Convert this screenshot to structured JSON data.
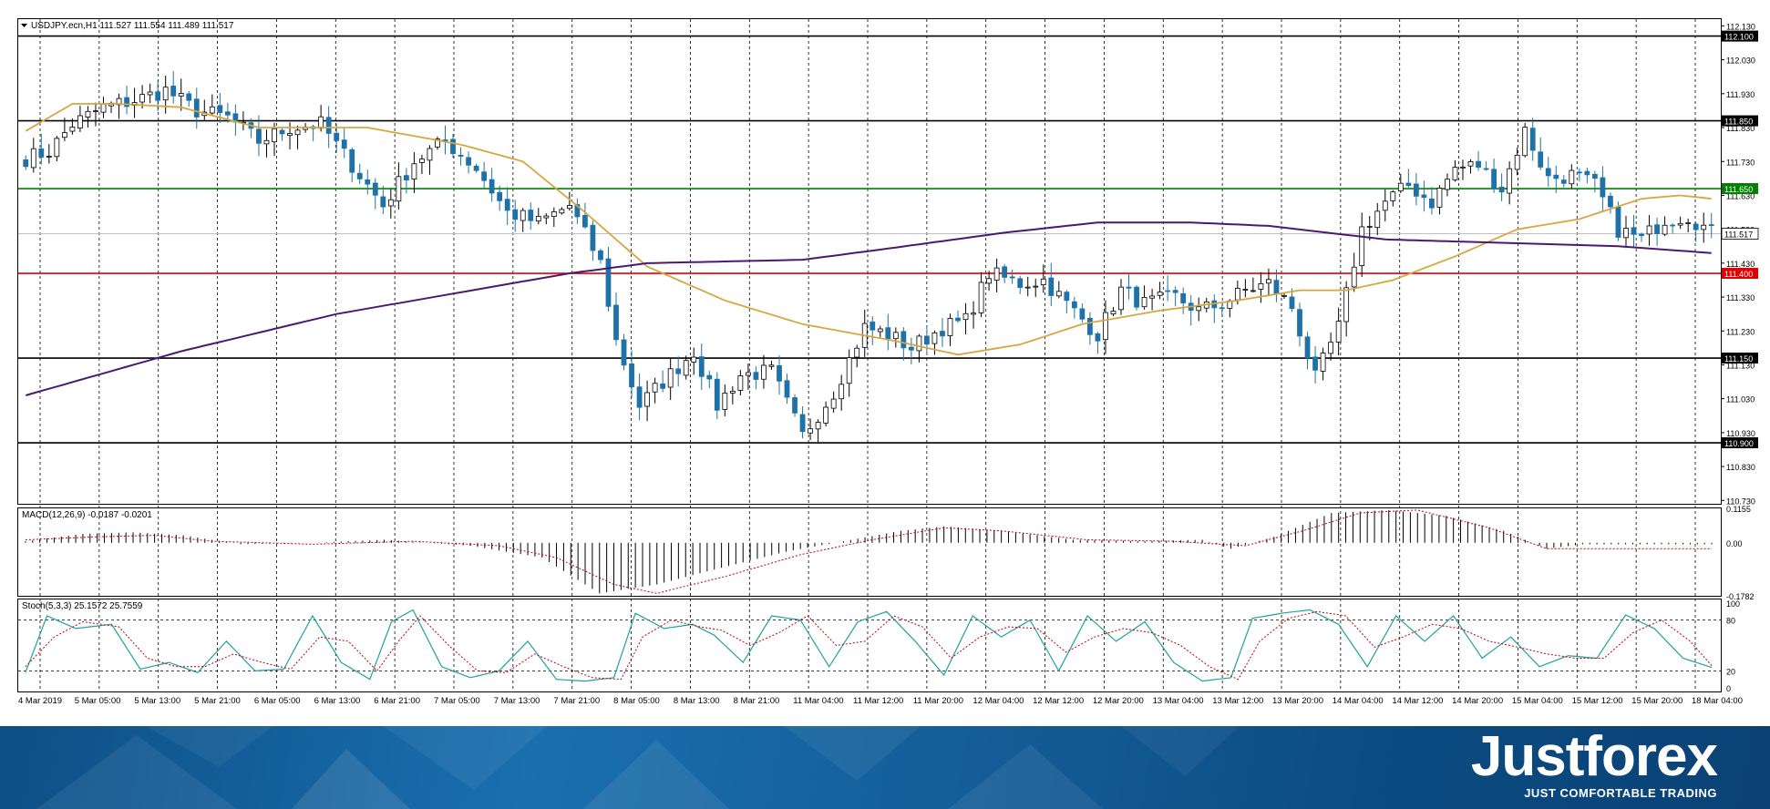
{
  "chart_data": {
    "type": "candlestick",
    "symbol_header": "USDJPY.ecn,H1  111.527 111.554 111.489 111.517",
    "price_axis": {
      "ylim": [
        110.72,
        112.15
      ],
      "ticks": [
        "112.130",
        "112.030",
        "111.930",
        "111.830",
        "111.730",
        "111.630",
        "111.530",
        "111.430",
        "111.330",
        "111.230",
        "111.130",
        "111.030",
        "110.930",
        "110.830",
        "110.730"
      ]
    },
    "horizontal_levels": [
      {
        "value": 112.1,
        "label": "112.100",
        "color": "#000000"
      },
      {
        "value": 111.85,
        "label": "111.850",
        "color": "#000000"
      },
      {
        "value": 111.65,
        "label": "111.650",
        "color": "#008000"
      },
      {
        "value": 111.4,
        "label": "111.400",
        "color": "#e00000"
      },
      {
        "value": 111.15,
        "label": "111.150",
        "color": "#000000"
      },
      {
        "value": 110.9,
        "label": "110.900",
        "color": "#000000"
      }
    ],
    "current_price": {
      "value": 111.517,
      "label": "111.517"
    },
    "x_labels": [
      "4 Mar 2019",
      "5 Mar 05:00",
      "5 Mar 13:00",
      "5 Mar 21:00",
      "6 Mar 05:00",
      "6 Mar 13:00",
      "6 Mar 21:00",
      "7 Mar 05:00",
      "7 Mar 13:00",
      "7 Mar 21:00",
      "8 Mar 05:00",
      "8 Mar 13:00",
      "8 Mar 21:00",
      "11 Mar 04:00",
      "11 Mar 12:00",
      "11 Mar 20:00",
      "12 Mar 04:00",
      "12 Mar 12:00",
      "12 Mar 20:00",
      "13 Mar 04:00",
      "13 Mar 12:00",
      "13 Mar 20:00",
      "14 Mar 04:00",
      "14 Mar 12:00",
      "14 Mar 20:00",
      "15 Mar 04:00",
      "15 Mar 12:00",
      "15 Mar 20:00",
      "18 Mar 04:00"
    ],
    "close_anchors": [
      [
        0,
        111.74
      ],
      [
        3,
        111.76
      ],
      [
        6,
        111.84
      ],
      [
        10,
        111.89
      ],
      [
        14,
        111.91
      ],
      [
        18,
        111.94
      ],
      [
        22,
        111.88
      ],
      [
        26,
        111.86
      ],
      [
        30,
        111.79
      ],
      [
        34,
        111.83
      ],
      [
        38,
        111.84
      ],
      [
        42,
        111.72
      ],
      [
        46,
        111.6
      ],
      [
        50,
        111.73
      ],
      [
        54,
        111.79
      ],
      [
        58,
        111.71
      ],
      [
        62,
        111.58
      ],
      [
        66,
        111.55
      ],
      [
        70,
        111.6
      ],
      [
        74,
        111.43
      ],
      [
        76,
        111.2
      ],
      [
        79,
        111.01
      ],
      [
        82,
        111.08
      ],
      [
        86,
        111.17
      ],
      [
        89,
        111.01
      ],
      [
        92,
        111.1
      ],
      [
        96,
        111.11
      ],
      [
        100,
        110.92
      ],
      [
        104,
        111.05
      ],
      [
        108,
        111.24
      ],
      [
        111,
        111.22
      ],
      [
        114,
        111.18
      ],
      [
        118,
        111.24
      ],
      [
        121,
        111.26
      ],
      [
        124,
        111.4
      ],
      [
        128,
        111.37
      ],
      [
        131,
        111.38
      ],
      [
        134,
        111.31
      ],
      [
        138,
        111.22
      ],
      [
        141,
        111.35
      ],
      [
        144,
        111.31
      ],
      [
        148,
        111.33
      ],
      [
        151,
        111.29
      ],
      [
        154,
        111.31
      ],
      [
        157,
        111.35
      ],
      [
        160,
        111.37
      ],
      [
        163,
        111.3
      ],
      [
        166,
        111.09
      ],
      [
        169,
        111.24
      ],
      [
        172,
        111.53
      ],
      [
        175,
        111.61
      ],
      [
        178,
        111.66
      ],
      [
        181,
        111.61
      ],
      [
        184,
        111.71
      ],
      [
        187,
        111.72
      ],
      [
        190,
        111.65
      ],
      [
        193,
        111.82
      ],
      [
        196,
        111.68
      ],
      [
        199,
        111.69
      ],
      [
        202,
        111.66
      ],
      [
        205,
        111.53
      ],
      [
        208,
        111.5
      ],
      [
        211,
        111.56
      ],
      [
        214,
        111.57
      ],
      [
        217,
        111.52
      ]
    ],
    "sma_fast_anchors": [
      [
        0,
        111.82
      ],
      [
        6,
        111.9
      ],
      [
        12,
        111.9
      ],
      [
        20,
        111.89
      ],
      [
        30,
        111.83
      ],
      [
        44,
        111.83
      ],
      [
        56,
        111.78
      ],
      [
        64,
        111.73
      ],
      [
        72,
        111.58
      ],
      [
        80,
        111.42
      ],
      [
        90,
        111.32
      ],
      [
        100,
        111.25
      ],
      [
        112,
        111.2
      ],
      [
        120,
        111.16
      ],
      [
        128,
        111.19
      ],
      [
        136,
        111.25
      ],
      [
        146,
        111.29
      ],
      [
        156,
        111.32
      ],
      [
        164,
        111.35
      ],
      [
        170,
        111.35
      ],
      [
        176,
        111.38
      ],
      [
        184,
        111.45
      ],
      [
        192,
        111.53
      ],
      [
        200,
        111.56
      ],
      [
        208,
        111.62
      ],
      [
        213,
        111.63
      ],
      [
        217,
        111.62
      ]
    ],
    "sma_slow_anchors": [
      [
        0,
        111.04
      ],
      [
        20,
        111.17
      ],
      [
        40,
        111.28
      ],
      [
        60,
        111.36
      ],
      [
        70,
        111.4
      ],
      [
        80,
        111.43
      ],
      [
        100,
        111.44
      ],
      [
        110,
        111.47
      ],
      [
        126,
        111.52
      ],
      [
        138,
        111.55
      ],
      [
        145,
        111.55
      ],
      [
        150,
        111.55
      ],
      [
        160,
        111.54
      ],
      [
        175,
        111.5
      ],
      [
        190,
        111.49
      ],
      [
        205,
        111.48
      ],
      [
        217,
        111.46
      ]
    ],
    "macd": {
      "label": "MACD(12,26,9) -0.0187 -0.0201",
      "ylim": [
        -0.1782,
        0.1155
      ],
      "ticks": [
        "0.1155",
        "0.00",
        "-0.1782"
      ],
      "hist_anchors": [
        [
          0,
          0.005
        ],
        [
          8,
          0.03
        ],
        [
          15,
          0.035
        ],
        [
          22,
          0.025
        ],
        [
          30,
          -0.005
        ],
        [
          40,
          0.0
        ],
        [
          50,
          0.01
        ],
        [
          62,
          -0.01
        ],
        [
          72,
          -0.05
        ],
        [
          80,
          -0.17
        ],
        [
          88,
          -0.14
        ],
        [
          96,
          -0.09
        ],
        [
          106,
          -0.03
        ],
        [
          114,
          0.005
        ],
        [
          122,
          0.04
        ],
        [
          128,
          0.055
        ],
        [
          136,
          0.04
        ],
        [
          146,
          0.01
        ],
        [
          156,
          0.005
        ],
        [
          164,
          0.01
        ],
        [
          168,
          -0.02
        ],
        [
          174,
          0.02
        ],
        [
          182,
          0.1
        ],
        [
          190,
          0.11
        ],
        [
          198,
          0.09
        ],
        [
          206,
          0.04
        ],
        [
          212,
          -0.02
        ],
        [
          217,
          -0.005
        ]
      ],
      "signal_anchors": [
        [
          0,
          0.01
        ],
        [
          10,
          0.02
        ],
        [
          18,
          0.025
        ],
        [
          26,
          0.005
        ],
        [
          40,
          -0.005
        ],
        [
          54,
          0.005
        ],
        [
          66,
          -0.01
        ],
        [
          74,
          -0.05
        ],
        [
          82,
          -0.14
        ],
        [
          88,
          -0.17
        ],
        [
          98,
          -0.11
        ],
        [
          108,
          -0.04
        ],
        [
          118,
          0.01
        ],
        [
          128,
          0.05
        ],
        [
          136,
          0.04
        ],
        [
          148,
          0.01
        ],
        [
          160,
          0.005
        ],
        [
          170,
          -0.01
        ],
        [
          178,
          0.04
        ],
        [
          186,
          0.1
        ],
        [
          194,
          0.11
        ],
        [
          204,
          0.05
        ],
        [
          212,
          -0.02
        ],
        [
          217,
          -0.02
        ]
      ]
    },
    "stochastic": {
      "label": "Stoch(5,3,3) 25.1572 25.7559",
      "ylim": [
        0,
        100
      ],
      "ticks": [
        "100",
        "80",
        "20",
        "0"
      ],
      "levels": [
        80,
        20
      ],
      "main_anchors": [
        [
          0,
          18
        ],
        [
          3,
          85
        ],
        [
          7,
          70
        ],
        [
          12,
          75
        ],
        [
          16,
          22
        ],
        [
          20,
          30
        ],
        [
          24,
          18
        ],
        [
          28,
          55
        ],
        [
          32,
          20
        ],
        [
          36,
          22
        ],
        [
          40,
          85
        ],
        [
          44,
          30
        ],
        [
          48,
          10
        ],
        [
          51,
          78
        ],
        [
          54,
          92
        ],
        [
          58,
          25
        ],
        [
          62,
          12
        ],
        [
          66,
          20
        ],
        [
          70,
          55
        ],
        [
          74,
          10
        ],
        [
          78,
          8
        ],
        [
          82,
          12
        ],
        [
          85,
          88
        ],
        [
          89,
          70
        ],
        [
          93,
          75
        ],
        [
          96,
          62
        ],
        [
          100,
          30
        ],
        [
          104,
          85
        ],
        [
          108,
          80
        ],
        [
          112,
          25
        ],
        [
          116,
          78
        ],
        [
          120,
          90
        ],
        [
          124,
          55
        ],
        [
          128,
          15
        ],
        [
          132,
          85
        ],
        [
          136,
          60
        ],
        [
          140,
          80
        ],
        [
          144,
          20
        ],
        [
          148,
          85
        ],
        [
          152,
          55
        ],
        [
          156,
          78
        ],
        [
          160,
          30
        ],
        [
          164,
          8
        ],
        [
          168,
          12
        ],
        [
          171,
          82
        ],
        [
          175,
          88
        ],
        [
          179,
          92
        ],
        [
          183,
          75
        ],
        [
          187,
          25
        ],
        [
          191,
          85
        ],
        [
          195,
          55
        ],
        [
          199,
          85
        ],
        [
          203,
          35
        ],
        [
          207,
          60
        ],
        [
          211,
          25
        ],
        [
          215,
          38
        ],
        [
          219,
          35
        ],
        [
          223,
          86
        ],
        [
          227,
          70
        ],
        [
          231,
          35
        ],
        [
          235,
          24
        ]
      ],
      "signal_anchors": [
        [
          0,
          25
        ],
        [
          4,
          60
        ],
        [
          8,
          78
        ],
        [
          13,
          72
        ],
        [
          17,
          35
        ],
        [
          21,
          25
        ],
        [
          25,
          25
        ],
        [
          29,
          40
        ],
        [
          33,
          30
        ],
        [
          37,
          22
        ],
        [
          41,
          60
        ],
        [
          45,
          55
        ],
        [
          49,
          20
        ],
        [
          52,
          55
        ],
        [
          55,
          85
        ],
        [
          59,
          50
        ],
        [
          63,
          20
        ],
        [
          67,
          18
        ],
        [
          71,
          40
        ],
        [
          75,
          25
        ],
        [
          79,
          12
        ],
        [
          83,
          10
        ],
        [
          86,
          60
        ],
        [
          90,
          80
        ],
        [
          94,
          72
        ],
        [
          97,
          68
        ],
        [
          101,
          50
        ],
        [
          105,
          65
        ],
        [
          109,
          85
        ],
        [
          113,
          50
        ],
        [
          117,
          55
        ],
        [
          121,
          85
        ],
        [
          125,
          72
        ],
        [
          129,
          35
        ],
        [
          133,
          60
        ],
        [
          137,
          72
        ],
        [
          141,
          70
        ],
        [
          145,
          42
        ],
        [
          149,
          60
        ],
        [
          153,
          70
        ],
        [
          157,
          65
        ],
        [
          161,
          50
        ],
        [
          165,
          25
        ],
        [
          169,
          10
        ],
        [
          172,
          55
        ],
        [
          176,
          82
        ],
        [
          180,
          90
        ],
        [
          184,
          85
        ],
        [
          188,
          48
        ],
        [
          192,
          60
        ],
        [
          196,
          75
        ],
        [
          200,
          70
        ],
        [
          204,
          55
        ],
        [
          208,
          48
        ],
        [
          212,
          40
        ],
        [
          216,
          35
        ],
        [
          220,
          35
        ],
        [
          224,
          65
        ],
        [
          228,
          80
        ],
        [
          232,
          55
        ],
        [
          235,
          26
        ]
      ]
    }
  },
  "brand": {
    "name": "Justforex",
    "tagline": "JUST COMFORTABLE TRADING"
  },
  "colors": {
    "bull_candle": "#ffffff",
    "bear_candle": "#1f72a8",
    "sma_fast": "#d6a640",
    "sma_slow": "#4b1a6e",
    "macd_signal": "#c00000",
    "stoch_main": "#20a0a0",
    "stoch_signal": "#c00000"
  }
}
